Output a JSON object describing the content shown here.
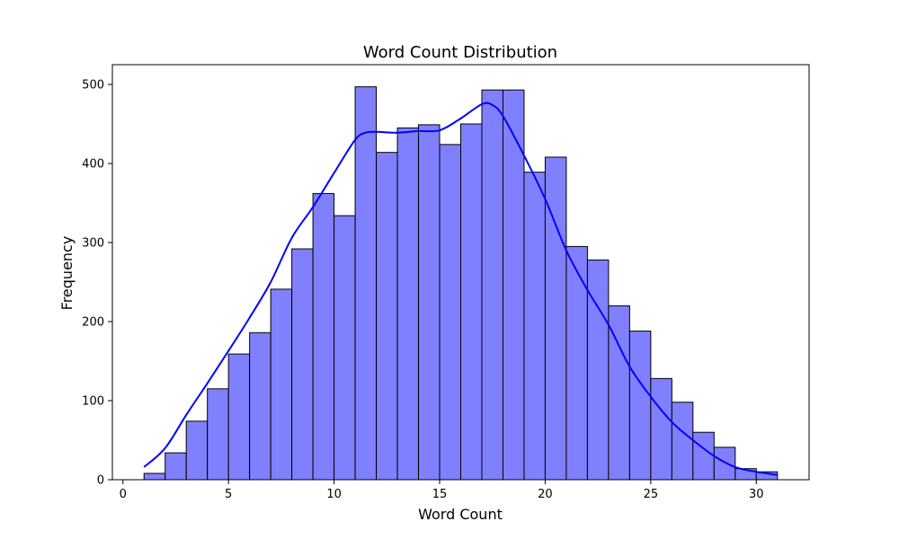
{
  "chart_data": {
    "type": "bar",
    "title": "Word Count Distribution",
    "xlabel": "Word Count",
    "ylabel": "Frequency",
    "xlim": [
      -0.5,
      32.5
    ],
    "ylim": [
      0,
      525
    ],
    "xticks": [
      "0",
      "5",
      "10",
      "15",
      "20",
      "25",
      "30"
    ],
    "yticks": [
      "0",
      "100",
      "200",
      "300",
      "400",
      "500"
    ],
    "bin_edges": [
      1,
      2,
      3,
      4,
      5,
      6,
      7,
      8,
      9,
      10,
      11,
      12,
      13,
      14,
      15,
      16,
      17,
      18,
      19,
      20,
      21,
      22,
      23,
      24,
      25,
      26,
      27,
      28,
      29,
      30,
      31
    ],
    "values": [
      8,
      34,
      74,
      115,
      159,
      186,
      241,
      292,
      362,
      334,
      497,
      414,
      445,
      449,
      424,
      450,
      493,
      493,
      389,
      408,
      295,
      278,
      220,
      188,
      128,
      98,
      60,
      41,
      14,
      10
    ],
    "kde": {
      "x": [
        1,
        2,
        3,
        4,
        5,
        6,
        7,
        8,
        9,
        10,
        11,
        11.5,
        12,
        13,
        14,
        15,
        16,
        17,
        17.5,
        18,
        19,
        20,
        21,
        22,
        23,
        24,
        25,
        26,
        27,
        28,
        29,
        30,
        31
      ],
      "y": [
        16,
        40,
        82,
        122,
        163,
        205,
        250,
        306,
        345,
        388,
        430,
        439,
        440,
        439,
        441,
        442,
        457,
        475,
        474,
        460,
        410,
        355,
        290,
        240,
        196,
        143,
        105,
        73,
        50,
        30,
        16,
        10,
        6
      ]
    },
    "bar_color": "#8080ff",
    "bar_edge_color": "#000000",
    "kde_color": "#0000ff",
    "grid": false
  }
}
